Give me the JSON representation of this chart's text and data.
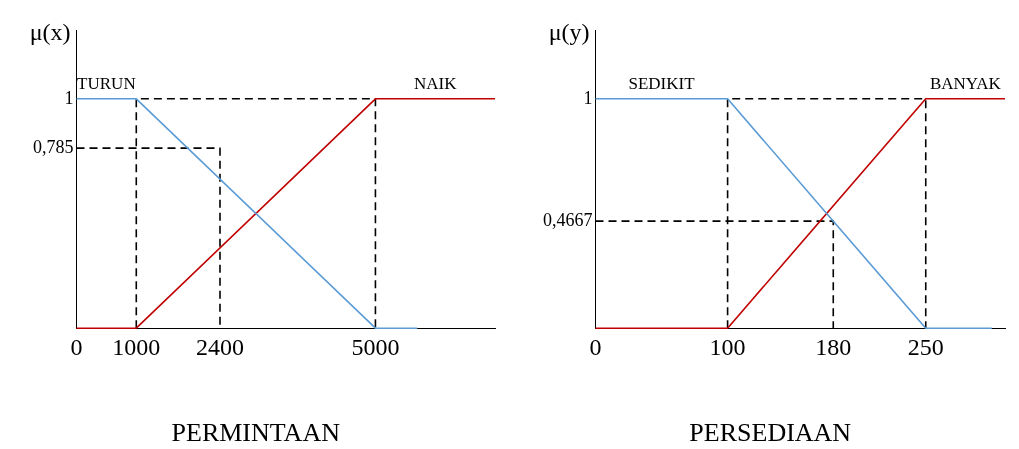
{
  "chart_data": [
    {
      "type": "line",
      "ylabel": "μ(x)",
      "xlabel": "PERMINTAAN",
      "xlim": [
        0,
        7000
      ],
      "ylim": [
        0,
        1.3
      ],
      "xticks": [
        0,
        1000,
        2400,
        5000
      ],
      "yticks": [
        {
          "value": 0.785,
          "label": "0,785"
        },
        1
      ],
      "grid": false,
      "legend": false,
      "marker": "none",
      "series": [
        {
          "name": "TURUN",
          "color": "#5b9bd5",
          "x": [
            0,
            1000,
            5000,
            5700
          ],
          "values": [
            1,
            1,
            0,
            0
          ]
        },
        {
          "name": "NAIK",
          "color": "#c00000",
          "x": [
            0,
            1000,
            5000,
            7000
          ],
          "values": [
            0,
            0,
            1,
            1
          ]
        },
        {
          "color": "#000000",
          "line_style": "dashed",
          "x": [
            0,
            2400,
            2400
          ],
          "values": [
            0.785,
            0.785,
            0
          ]
        },
        {
          "color": "#000000",
          "line_style": "dashed",
          "x": [
            1000,
            1000,
            5000,
            5000
          ],
          "values": [
            0,
            1,
            1,
            0
          ]
        }
      ]
    },
    {
      "type": "line",
      "ylabel": "μ(y)",
      "xlabel": "PERSEDIAAN",
      "xlim": [
        0,
        310
      ],
      "ylim": [
        0,
        1.3
      ],
      "xticks": [
        0,
        100,
        180,
        250
      ],
      "yticks": [
        {
          "value": 0.4667,
          "label": "0,4667"
        },
        1
      ],
      "grid": false,
      "legend": false,
      "marker": "none",
      "series": [
        {
          "name": "SEDIKIT",
          "color": "#5b9bd5",
          "x": [
            0,
            100,
            250,
            300
          ],
          "values": [
            1,
            1,
            0,
            0
          ]
        },
        {
          "name": "BANYAK",
          "color": "#c00000",
          "x": [
            0,
            100,
            250,
            310
          ],
          "values": [
            0,
            0,
            1,
            1
          ]
        },
        {
          "color": "#000000",
          "line_style": "dashed",
          "x": [
            0,
            180,
            180
          ],
          "values": [
            0.4667,
            0.4667,
            0
          ]
        },
        {
          "color": "#000000",
          "line_style": "dashed",
          "x": [
            100,
            100,
            250,
            250
          ],
          "values": [
            0,
            1,
            1,
            0
          ]
        }
      ]
    }
  ]
}
